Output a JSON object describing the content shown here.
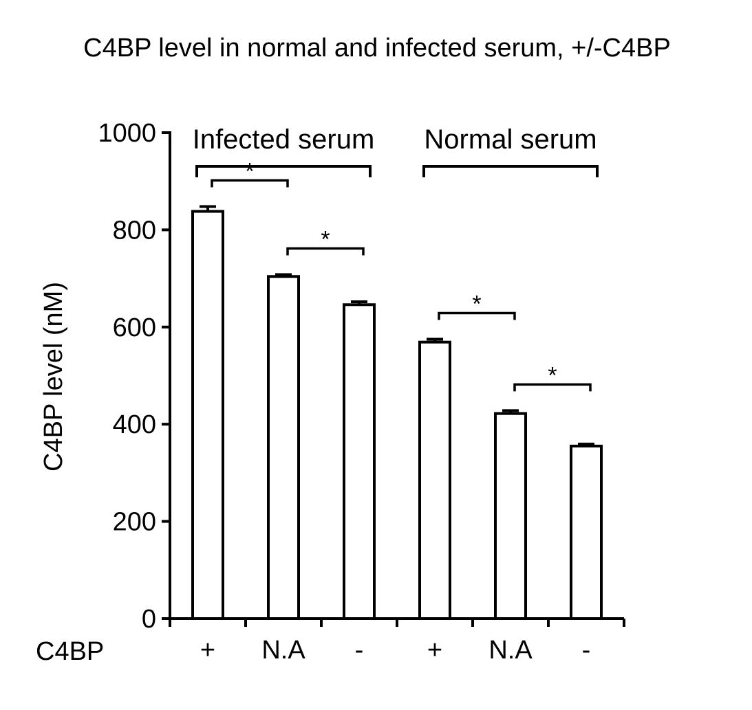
{
  "chart_data": {
    "type": "bar",
    "title": "C4BP level in normal and infected serum, +/-C4BP",
    "ylabel": "C4BP level (nM)",
    "xlabel": "",
    "ylim": [
      0,
      1000
    ],
    "yticks": [
      0,
      200,
      400,
      600,
      800,
      1000
    ],
    "row_label": "C4BP",
    "groups": [
      {
        "label": "Infected serum",
        "bars": [
          0,
          1,
          2
        ]
      },
      {
        "label": "Normal serum",
        "bars": [
          3,
          4,
          5
        ]
      }
    ],
    "categories": [
      "+",
      "N.A",
      "-",
      "+",
      "N.A",
      "-"
    ],
    "values": [
      838,
      704,
      646,
      569,
      422,
      355
    ],
    "errors": [
      10,
      4,
      6,
      6,
      6,
      4
    ],
    "significance": [
      {
        "from": 0,
        "to": 1,
        "label": "*"
      },
      {
        "from": 1,
        "to": 2,
        "label": "*"
      },
      {
        "from": 3,
        "to": 4,
        "label": "*"
      },
      {
        "from": 4,
        "to": 5,
        "label": "*"
      }
    ],
    "grid": false,
    "legend": "none",
    "bar_fill": "#ffffff",
    "bar_stroke": "#000000"
  }
}
